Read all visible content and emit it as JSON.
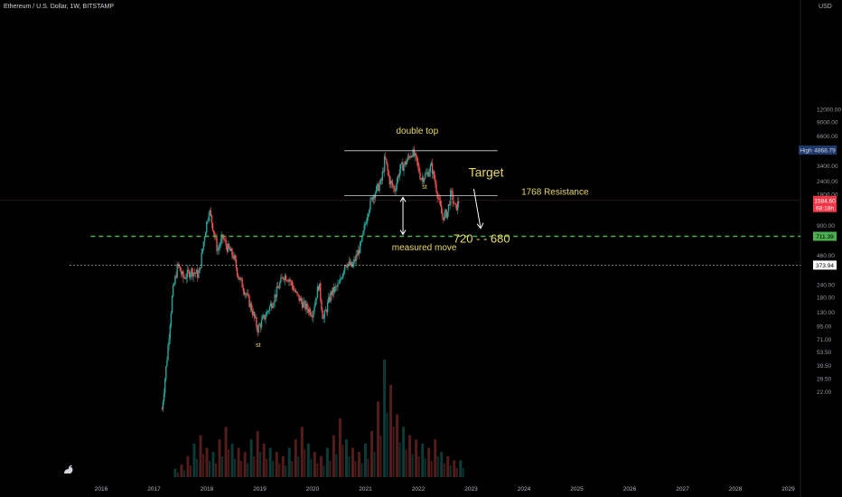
{
  "header": {
    "symbol_line": "Ethereum / U.S. Dollar, 1W, BITSTAMP",
    "currency": "USD"
  },
  "chart_data": {
    "type": "candlestick",
    "title": "Ethereum / U.S. Dollar, 1W, BITSTAMP",
    "y_scale": "log",
    "y_ticks": [
      "12000.00",
      "9000.00",
      "6600.00",
      "4868.79",
      "3400.00",
      "2400.00",
      "1800.00",
      "1584.60",
      "900.00",
      "711.39",
      "460.00",
      "373.94",
      "240.00",
      "180.00",
      "130.00",
      "95.00",
      "71.00",
      "53.50",
      "39.50",
      "29.50",
      "22.00"
    ],
    "y_tick_values": [
      12000,
      9000,
      6600,
      4868.79,
      3400,
      2400,
      1800,
      1584.6,
      900,
      711.39,
      460,
      373.94,
      240,
      180,
      130,
      95,
      71,
      53.5,
      39.5,
      29.5,
      22
    ],
    "x_ticks": [
      "2016",
      "2017",
      "2018",
      "2019",
      "2020",
      "2021",
      "2022",
      "2023",
      "2024",
      "2025",
      "2026",
      "2027",
      "2028",
      "2029"
    ],
    "price_path": [
      {
        "x": 2017.15,
        "y": 15
      },
      {
        "x": 2017.25,
        "y": 50
      },
      {
        "x": 2017.35,
        "y": 200
      },
      {
        "x": 2017.45,
        "y": 380
      },
      {
        "x": 2017.55,
        "y": 280
      },
      {
        "x": 2017.7,
        "y": 330
      },
      {
        "x": 2017.85,
        "y": 300
      },
      {
        "x": 2017.95,
        "y": 700
      },
      {
        "x": 2018.04,
        "y": 1300
      },
      {
        "x": 2018.12,
        "y": 850
      },
      {
        "x": 2018.2,
        "y": 520
      },
      {
        "x": 2018.3,
        "y": 700
      },
      {
        "x": 2018.38,
        "y": 560
      },
      {
        "x": 2018.5,
        "y": 460
      },
      {
        "x": 2018.6,
        "y": 290
      },
      {
        "x": 2018.72,
        "y": 210
      },
      {
        "x": 2018.85,
        "y": 140
      },
      {
        "x": 2018.96,
        "y": 90
      },
      {
        "x": 2019.1,
        "y": 120
      },
      {
        "x": 2019.25,
        "y": 170
      },
      {
        "x": 2019.45,
        "y": 300
      },
      {
        "x": 2019.55,
        "y": 280
      },
      {
        "x": 2019.7,
        "y": 190
      },
      {
        "x": 2019.85,
        "y": 150
      },
      {
        "x": 2020.0,
        "y": 130
      },
      {
        "x": 2020.12,
        "y": 250
      },
      {
        "x": 2020.2,
        "y": 110
      },
      {
        "x": 2020.35,
        "y": 200
      },
      {
        "x": 2020.5,
        "y": 240
      },
      {
        "x": 2020.62,
        "y": 400
      },
      {
        "x": 2020.75,
        "y": 360
      },
      {
        "x": 2020.92,
        "y": 600
      },
      {
        "x": 2021.05,
        "y": 1300
      },
      {
        "x": 2021.15,
        "y": 1800
      },
      {
        "x": 2021.3,
        "y": 2400
      },
      {
        "x": 2021.37,
        "y": 4100
      },
      {
        "x": 2021.45,
        "y": 2500
      },
      {
        "x": 2021.55,
        "y": 2000
      },
      {
        "x": 2021.65,
        "y": 3200
      },
      {
        "x": 2021.75,
        "y": 3600
      },
      {
        "x": 2021.88,
        "y": 4700
      },
      {
        "x": 2021.96,
        "y": 3900
      },
      {
        "x": 2022.05,
        "y": 2600
      },
      {
        "x": 2022.15,
        "y": 2800
      },
      {
        "x": 2022.25,
        "y": 3400
      },
      {
        "x": 2022.35,
        "y": 2000
      },
      {
        "x": 2022.45,
        "y": 1100
      },
      {
        "x": 2022.55,
        "y": 1200
      },
      {
        "x": 2022.62,
        "y": 1900
      },
      {
        "x": 2022.7,
        "y": 1300
      },
      {
        "x": 2022.78,
        "y": 1600
      }
    ],
    "volume_series": [
      2,
      3,
      5,
      8,
      10,
      7,
      6,
      9,
      12,
      8,
      7,
      6,
      9,
      11,
      8,
      7,
      6,
      5,
      7,
      9,
      12,
      8,
      6,
      5,
      7,
      10,
      14,
      9,
      7,
      6,
      8,
      11,
      18,
      28,
      22,
      15,
      12,
      10,
      9,
      8,
      7,
      9,
      6,
      5,
      4,
      4
    ],
    "levels": [
      {
        "name": "double_top_line",
        "value": 4800,
        "x_range": [
          2020.6,
          2023.5
        ]
      },
      {
        "name": "resistance_1768",
        "value": 1768,
        "x_range": [
          2020.6,
          2023.5
        ]
      },
      {
        "name": "measured_target",
        "value": 711.39,
        "x_range": [
          2015.8,
          2029.6
        ]
      },
      {
        "name": "support_373",
        "value": 373.94,
        "x_range": [
          2015.4,
          2029.6
        ]
      }
    ],
    "price_tags": {
      "high_label": "High",
      "high_value": "4868.79",
      "current_price": "1584.60",
      "current_sub": "68:18h",
      "target_tag": "711.39",
      "support_tag": "373.94"
    },
    "annotations": {
      "double_top": "double top",
      "target": "Target",
      "resistance": "1768 Resistance",
      "measured_move": "measured move",
      "target_range": "720 - - 680",
      "st_top": "st",
      "st_bottom": "st"
    },
    "colors": {
      "up": "#26a69a",
      "down": "#ef5350",
      "annotation": "#e8d86a",
      "target_line": "#4caf50",
      "current_price": "#f23645",
      "high_tag": "#1e3a6e"
    }
  }
}
